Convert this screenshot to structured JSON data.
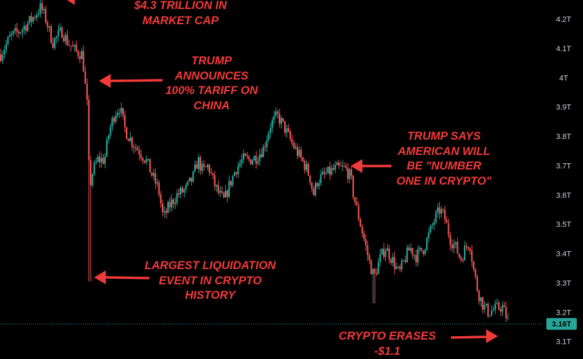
{
  "chart_data": {
    "type": "candlestick",
    "yaxis": {
      "ticks": [
        "4.2T",
        "4.1T",
        "4T",
        "3.9T",
        "3.8T",
        "3.7T",
        "3.6T",
        "3.5T",
        "3.4T",
        "3.3T",
        "3.2T",
        "3.1T"
      ],
      "tick_values": [
        4.2,
        4.1,
        4.0,
        3.9,
        3.8,
        3.7,
        3.6,
        3.5,
        3.4,
        3.3,
        3.2,
        3.1
      ],
      "ylim": [
        3.085,
        4.265
      ]
    },
    "current_price": {
      "label": "3.16T",
      "value": 3.16
    },
    "colors": {
      "up": "#26a69a",
      "down": "#ef5350",
      "annotation": "#f23a3a",
      "price_tag": "#26a69a"
    },
    "close_path": [
      [
        0,
        4.08
      ],
      [
        14,
        4.14
      ],
      [
        28,
        4.16
      ],
      [
        45,
        4.2
      ],
      [
        58,
        4.24
      ],
      [
        65,
        4.2
      ],
      [
        75,
        4.12
      ],
      [
        88,
        4.16
      ],
      [
        97,
        4.12
      ],
      [
        108,
        4.09
      ],
      [
        118,
        4.08
      ],
      [
        123,
        3.95
      ],
      [
        126,
        3.88
      ],
      [
        128,
        3.62
      ],
      [
        133,
        3.68
      ],
      [
        140,
        3.72
      ],
      [
        150,
        3.72
      ],
      [
        157,
        3.82
      ],
      [
        165,
        3.88
      ],
      [
        172,
        3.9
      ],
      [
        180,
        3.82
      ],
      [
        190,
        3.78
      ],
      [
        200,
        3.75
      ],
      [
        210,
        3.72
      ],
      [
        220,
        3.66
      ],
      [
        228,
        3.62
      ],
      [
        235,
        3.52
      ],
      [
        243,
        3.56
      ],
      [
        255,
        3.6
      ],
      [
        268,
        3.62
      ],
      [
        278,
        3.66
      ],
      [
        285,
        3.72
      ],
      [
        292,
        3.68
      ],
      [
        300,
        3.7
      ],
      [
        308,
        3.64
      ],
      [
        316,
        3.6
      ],
      [
        323,
        3.58
      ],
      [
        330,
        3.63
      ],
      [
        340,
        3.69
      ],
      [
        350,
        3.72
      ],
      [
        360,
        3.72
      ],
      [
        370,
        3.73
      ],
      [
        380,
        3.76
      ],
      [
        390,
        3.84
      ],
      [
        400,
        3.87
      ],
      [
        410,
        3.83
      ],
      [
        420,
        3.78
      ],
      [
        430,
        3.74
      ],
      [
        440,
        3.7
      ],
      [
        447,
        3.66
      ],
      [
        452,
        3.6
      ],
      [
        458,
        3.65
      ],
      [
        470,
        3.67
      ],
      [
        485,
        3.69
      ],
      [
        498,
        3.69
      ],
      [
        506,
        3.66
      ],
      [
        510,
        3.6
      ],
      [
        516,
        3.54
      ],
      [
        522,
        3.48
      ],
      [
        528,
        3.42
      ],
      [
        534,
        3.36
      ],
      [
        540,
        3.32
      ],
      [
        548,
        3.38
      ],
      [
        556,
        3.42
      ],
      [
        566,
        3.38
      ],
      [
        576,
        3.33
      ],
      [
        584,
        3.38
      ],
      [
        592,
        3.42
      ],
      [
        600,
        3.39
      ],
      [
        612,
        3.42
      ],
      [
        620,
        3.47
      ],
      [
        628,
        3.52
      ],
      [
        635,
        3.55
      ],
      [
        642,
        3.52
      ],
      [
        650,
        3.45
      ],
      [
        658,
        3.42
      ],
      [
        665,
        3.38
      ],
      [
        672,
        3.42
      ],
      [
        678,
        3.44
      ],
      [
        684,
        3.34
      ],
      [
        690,
        3.27
      ],
      [
        698,
        3.22
      ],
      [
        705,
        3.2
      ],
      [
        715,
        3.21
      ],
      [
        725,
        3.22
      ],
      [
        730,
        3.19
      ],
      [
        735,
        3.16
      ]
    ],
    "events": {
      "dip_low": {
        "x": 128,
        "low": 3.305
      },
      "bounce_low": {
        "x": 540,
        "low": 3.23
      }
    },
    "annotations": [
      {
        "text": "$4.3 TRILLION IN\nMARKET CAP"
      },
      {
        "text": "TRUMP\nANNOUNCES\n100% TARIFF ON\nCHINA"
      },
      {
        "text": "TRUMP SAYS\nAMERICAN WILL\nBE \"NUMBER\nONE IN CRYPTO\""
      },
      {
        "text": "LARGEST LIQUIDATION\nEVENT IN CRYPTO\nHISTORY"
      },
      {
        "text": "CRYPTO ERASES -$1.1"
      }
    ]
  }
}
